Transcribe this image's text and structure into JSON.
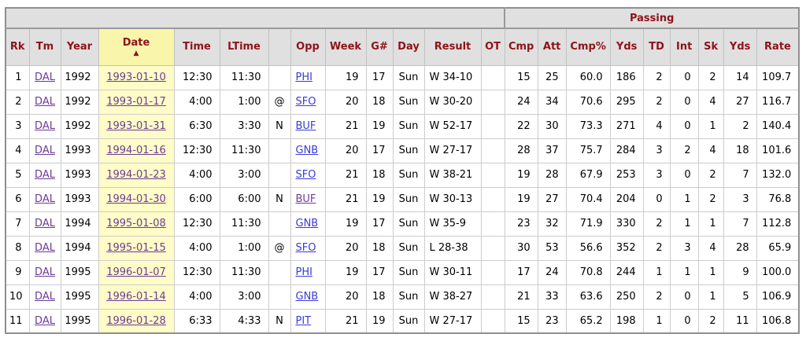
{
  "colors": {
    "header_text": "#8e1319",
    "header_bg": "#e0e0e0",
    "sorted_header_bg": "#f9f5ab",
    "sorted_cell_bg": "#fffcc7",
    "link_color": "#3a3ad9",
    "visited_link_color": "#6d3b97",
    "border_color": "#8f8f8f"
  },
  "table": {
    "group_headers": [
      {
        "label": "",
        "colspan": 13
      },
      {
        "label": "Passing",
        "colspan": 9
      }
    ],
    "sort_icon": "▲",
    "sorted_column": "date",
    "columns": [
      {
        "key": "rk",
        "label": "Rk"
      },
      {
        "key": "tm",
        "label": "Tm"
      },
      {
        "key": "year",
        "label": "Year"
      },
      {
        "key": "date",
        "label": "Date",
        "sorted": true
      },
      {
        "key": "time",
        "label": "Time"
      },
      {
        "key": "ltime",
        "label": "LTime"
      },
      {
        "key": "at",
        "label": ""
      },
      {
        "key": "opp",
        "label": "Opp"
      },
      {
        "key": "week",
        "label": "Week"
      },
      {
        "key": "g",
        "label": "G#"
      },
      {
        "key": "day",
        "label": "Day"
      },
      {
        "key": "result",
        "label": "Result"
      },
      {
        "key": "ot",
        "label": "OT"
      },
      {
        "key": "cmp",
        "label": "Cmp"
      },
      {
        "key": "att",
        "label": "Att"
      },
      {
        "key": "cmp_pct",
        "label": "Cmp%"
      },
      {
        "key": "yds",
        "label": "Yds"
      },
      {
        "key": "td",
        "label": "TD"
      },
      {
        "key": "int",
        "label": "Int"
      },
      {
        "key": "sk",
        "label": "Sk"
      },
      {
        "key": "sk_yds",
        "label": "Yds"
      },
      {
        "key": "rate",
        "label": "Rate"
      }
    ],
    "rows": [
      {
        "rk": "1",
        "tm": "DAL",
        "year": "1992",
        "date": "1993-01-10",
        "time": "12:30",
        "ltime": "11:30",
        "at": "",
        "opp": "PHI",
        "opp_visited": false,
        "week": "19",
        "g": "17",
        "day": "Sun",
        "result": "W 34-10",
        "ot": "",
        "cmp": "15",
        "att": "25",
        "cmp_pct": "60.0",
        "yds": "186",
        "td": "2",
        "int": "0",
        "sk": "2",
        "sk_yds": "14",
        "rate": "109.7"
      },
      {
        "rk": "2",
        "tm": "DAL",
        "year": "1992",
        "date": "1993-01-17",
        "time": "4:00",
        "ltime": "1:00",
        "at": "@",
        "opp": "SFO",
        "opp_visited": false,
        "week": "20",
        "g": "18",
        "day": "Sun",
        "result": "W 30-20",
        "ot": "",
        "cmp": "24",
        "att": "34",
        "cmp_pct": "70.6",
        "yds": "295",
        "td": "2",
        "int": "0",
        "sk": "4",
        "sk_yds": "27",
        "rate": "116.7"
      },
      {
        "rk": "3",
        "tm": "DAL",
        "year": "1992",
        "date": "1993-01-31",
        "time": "6:30",
        "ltime": "3:30",
        "at": "N",
        "opp": "BUF",
        "opp_visited": false,
        "week": "21",
        "g": "19",
        "day": "Sun",
        "result": "W 52-17",
        "ot": "",
        "cmp": "22",
        "att": "30",
        "cmp_pct": "73.3",
        "yds": "271",
        "td": "4",
        "int": "0",
        "sk": "1",
        "sk_yds": "2",
        "rate": "140.4"
      },
      {
        "rk": "4",
        "tm": "DAL",
        "year": "1993",
        "date": "1994-01-16",
        "time": "12:30",
        "ltime": "11:30",
        "at": "",
        "opp": "GNB",
        "opp_visited": false,
        "week": "20",
        "g": "17",
        "day": "Sun",
        "result": "W 27-17",
        "ot": "",
        "cmp": "28",
        "att": "37",
        "cmp_pct": "75.7",
        "yds": "284",
        "td": "3",
        "int": "2",
        "sk": "4",
        "sk_yds": "18",
        "rate": "101.6"
      },
      {
        "rk": "5",
        "tm": "DAL",
        "year": "1993",
        "date": "1994-01-23",
        "time": "4:00",
        "ltime": "3:00",
        "at": "",
        "opp": "SFO",
        "opp_visited": false,
        "week": "21",
        "g": "18",
        "day": "Sun",
        "result": "W 38-21",
        "ot": "",
        "cmp": "19",
        "att": "28",
        "cmp_pct": "67.9",
        "yds": "253",
        "td": "3",
        "int": "0",
        "sk": "2",
        "sk_yds": "7",
        "rate": "132.0"
      },
      {
        "rk": "6",
        "tm": "DAL",
        "year": "1993",
        "date": "1994-01-30",
        "time": "6:00",
        "ltime": "6:00",
        "at": "N",
        "opp": "BUF",
        "opp_visited": true,
        "week": "21",
        "g": "19",
        "day": "Sun",
        "result": "W 30-13",
        "ot": "",
        "cmp": "19",
        "att": "27",
        "cmp_pct": "70.4",
        "yds": "204",
        "td": "0",
        "int": "1",
        "sk": "2",
        "sk_yds": "3",
        "rate": "76.8"
      },
      {
        "rk": "7",
        "tm": "DAL",
        "year": "1994",
        "date": "1995-01-08",
        "time": "12:30",
        "ltime": "11:30",
        "at": "",
        "opp": "GNB",
        "opp_visited": false,
        "week": "19",
        "g": "17",
        "day": "Sun",
        "result": "W 35-9",
        "ot": "",
        "cmp": "23",
        "att": "32",
        "cmp_pct": "71.9",
        "yds": "330",
        "td": "2",
        "int": "1",
        "sk": "1",
        "sk_yds": "7",
        "rate": "112.8"
      },
      {
        "rk": "8",
        "tm": "DAL",
        "year": "1994",
        "date": "1995-01-15",
        "time": "4:00",
        "ltime": "1:00",
        "at": "@",
        "opp": "SFO",
        "opp_visited": false,
        "week": "20",
        "g": "18",
        "day": "Sun",
        "result": "L 28-38",
        "ot": "",
        "cmp": "30",
        "att": "53",
        "cmp_pct": "56.6",
        "yds": "352",
        "td": "2",
        "int": "3",
        "sk": "4",
        "sk_yds": "28",
        "rate": "65.9"
      },
      {
        "rk": "9",
        "tm": "DAL",
        "year": "1995",
        "date": "1996-01-07",
        "time": "12:30",
        "ltime": "11:30",
        "at": "",
        "opp": "PHI",
        "opp_visited": false,
        "week": "19",
        "g": "17",
        "day": "Sun",
        "result": "W 30-11",
        "ot": "",
        "cmp": "17",
        "att": "24",
        "cmp_pct": "70.8",
        "yds": "244",
        "td": "1",
        "int": "1",
        "sk": "1",
        "sk_yds": "9",
        "rate": "100.0"
      },
      {
        "rk": "10",
        "tm": "DAL",
        "year": "1995",
        "date": "1996-01-14",
        "time": "4:00",
        "ltime": "3:00",
        "at": "",
        "opp": "GNB",
        "opp_visited": false,
        "week": "20",
        "g": "18",
        "day": "Sun",
        "result": "W 38-27",
        "ot": "",
        "cmp": "21",
        "att": "33",
        "cmp_pct": "63.6",
        "yds": "250",
        "td": "2",
        "int": "0",
        "sk": "1",
        "sk_yds": "5",
        "rate": "106.9"
      },
      {
        "rk": "11",
        "tm": "DAL",
        "year": "1995",
        "date": "1996-01-28",
        "time": "6:33",
        "ltime": "4:33",
        "at": "N",
        "opp": "PIT",
        "opp_visited": false,
        "week": "21",
        "g": "19",
        "day": "Sun",
        "result": "W 27-17",
        "ot": "",
        "cmp": "15",
        "att": "23",
        "cmp_pct": "65.2",
        "yds": "198",
        "td": "1",
        "int": "0",
        "sk": "2",
        "sk_yds": "11",
        "rate": "106.8"
      }
    ]
  }
}
